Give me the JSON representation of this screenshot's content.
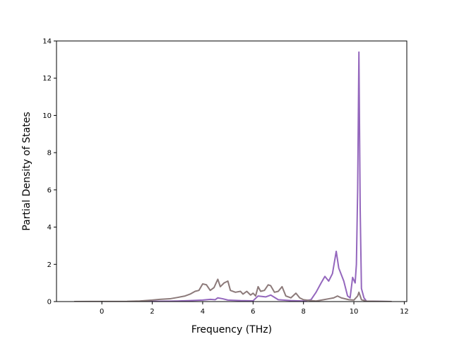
{
  "chart_data": {
    "type": "line",
    "title": "",
    "xlabel": "Frequency (THz)",
    "ylabel": "Partial Density of States",
    "xlim": [
      -1.8,
      12.1
    ],
    "ylim": [
      0,
      14
    ],
    "xticks": [
      0,
      2,
      4,
      6,
      8,
      10,
      12
    ],
    "yticks": [
      0,
      2,
      4,
      6,
      8,
      10,
      12,
      14
    ],
    "grid": false,
    "legend": "none",
    "series": [
      {
        "color": "#9467bd",
        "points": [
          [
            -1.1,
            0
          ],
          [
            1.0,
            0
          ],
          [
            2.0,
            0.01
          ],
          [
            3.0,
            0.03
          ],
          [
            3.5,
            0.05
          ],
          [
            4.0,
            0.08
          ],
          [
            4.3,
            0.12
          ],
          [
            4.5,
            0.1
          ],
          [
            4.6,
            0.2
          ],
          [
            4.8,
            0.15
          ],
          [
            5.0,
            0.08
          ],
          [
            5.5,
            0.05
          ],
          [
            6.0,
            0.04
          ],
          [
            6.2,
            0.3
          ],
          [
            6.5,
            0.25
          ],
          [
            6.7,
            0.35
          ],
          [
            7.0,
            0.1
          ],
          [
            7.5,
            0.05
          ],
          [
            8.0,
            0.03
          ],
          [
            8.3,
            0.1
          ],
          [
            8.5,
            0.5
          ],
          [
            8.7,
            1.0
          ],
          [
            8.85,
            1.35
          ],
          [
            9.0,
            1.1
          ],
          [
            9.15,
            1.5
          ],
          [
            9.3,
            2.7
          ],
          [
            9.4,
            1.8
          ],
          [
            9.6,
            1.1
          ],
          [
            9.75,
            0.3
          ],
          [
            9.85,
            0.2
          ],
          [
            9.95,
            1.3
          ],
          [
            10.05,
            1.0
          ],
          [
            10.1,
            2.0
          ],
          [
            10.15,
            6.0
          ],
          [
            10.2,
            13.4
          ],
          [
            10.25,
            5.0
          ],
          [
            10.3,
            0.7
          ],
          [
            10.4,
            0.2
          ],
          [
            10.5,
            0.02
          ],
          [
            11.5,
            0
          ]
        ]
      },
      {
        "color": "#8c7a7a",
        "points": [
          [
            -1.1,
            0
          ],
          [
            1.0,
            0.01
          ],
          [
            1.5,
            0.03
          ],
          [
            2.0,
            0.08
          ],
          [
            2.3,
            0.12
          ],
          [
            2.7,
            0.15
          ],
          [
            3.0,
            0.22
          ],
          [
            3.3,
            0.3
          ],
          [
            3.5,
            0.4
          ],
          [
            3.7,
            0.55
          ],
          [
            3.85,
            0.6
          ],
          [
            4.0,
            0.95
          ],
          [
            4.15,
            0.9
          ],
          [
            4.3,
            0.6
          ],
          [
            4.45,
            0.75
          ],
          [
            4.6,
            1.2
          ],
          [
            4.7,
            0.8
          ],
          [
            4.85,
            1.0
          ],
          [
            5.0,
            1.1
          ],
          [
            5.1,
            0.6
          ],
          [
            5.3,
            0.5
          ],
          [
            5.5,
            0.55
          ],
          [
            5.6,
            0.4
          ],
          [
            5.75,
            0.55
          ],
          [
            5.9,
            0.35
          ],
          [
            6.0,
            0.45
          ],
          [
            6.1,
            0.3
          ],
          [
            6.2,
            0.8
          ],
          [
            6.3,
            0.55
          ],
          [
            6.45,
            0.6
          ],
          [
            6.6,
            0.9
          ],
          [
            6.7,
            0.85
          ],
          [
            6.85,
            0.5
          ],
          [
            7.0,
            0.55
          ],
          [
            7.15,
            0.8
          ],
          [
            7.3,
            0.3
          ],
          [
            7.5,
            0.2
          ],
          [
            7.7,
            0.45
          ],
          [
            7.85,
            0.2
          ],
          [
            8.0,
            0.1
          ],
          [
            8.3,
            0.05
          ],
          [
            8.5,
            0.03
          ],
          [
            8.8,
            0.1
          ],
          [
            9.0,
            0.15
          ],
          [
            9.2,
            0.2
          ],
          [
            9.35,
            0.3
          ],
          [
            9.5,
            0.2
          ],
          [
            9.8,
            0.1
          ],
          [
            10.0,
            0.08
          ],
          [
            10.15,
            0.3
          ],
          [
            10.2,
            0.5
          ],
          [
            10.3,
            0.1
          ],
          [
            10.5,
            0.02
          ],
          [
            11.5,
            0
          ]
        ]
      }
    ]
  }
}
